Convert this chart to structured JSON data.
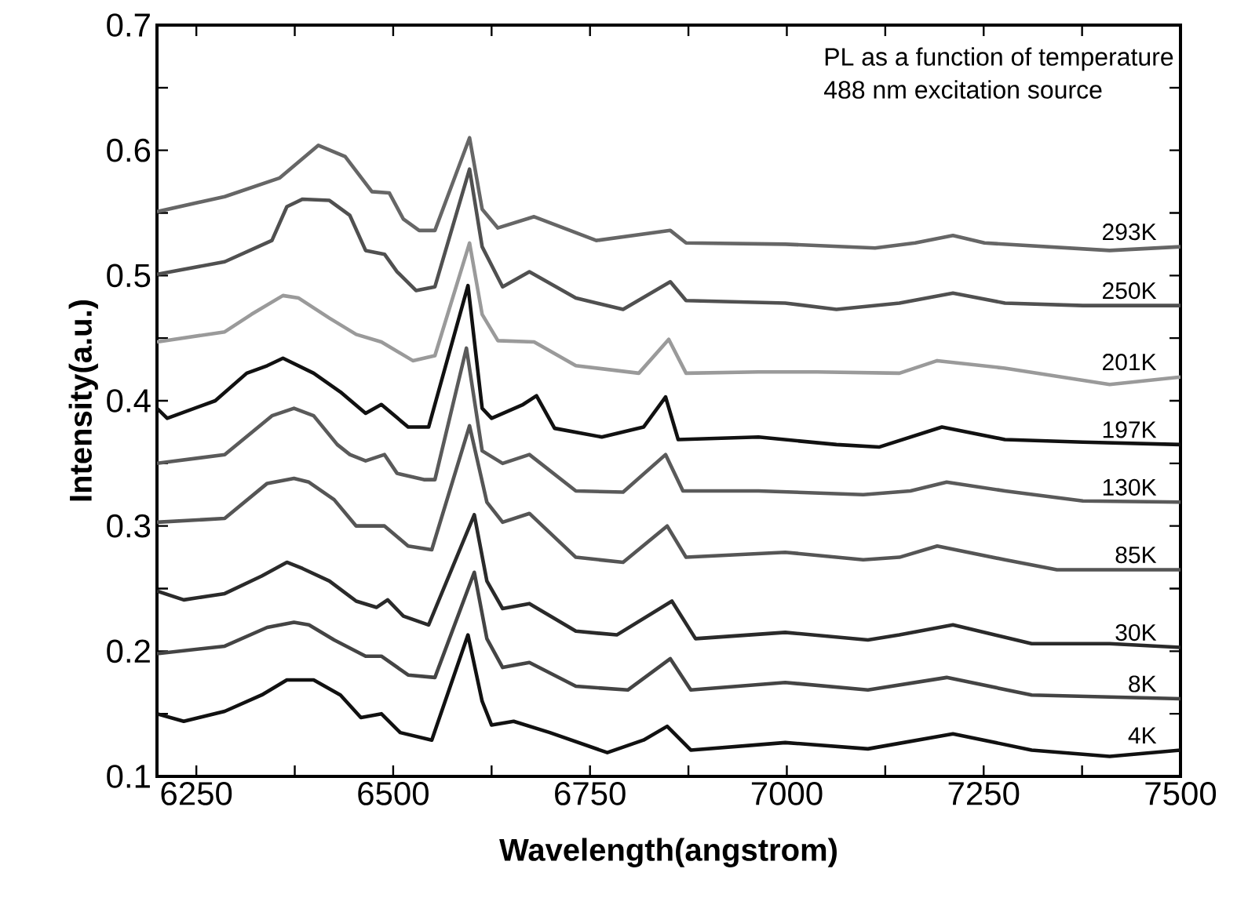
{
  "chart_data": {
    "type": "line",
    "xlabel": "Wavelength(angstrom)",
    "ylabel": "Intensity(a.u.)",
    "annotations": [
      "PL as a function of temperature",
      "488 nm excitation source"
    ],
    "xlim": [
      6200,
      7500
    ],
    "ylim": [
      0.1,
      0.7
    ],
    "xticks": [
      6250,
      {
        "value": 6375,
        "label": null
      },
      6500,
      {
        "value": 6625,
        "label": null
      },
      6750,
      {
        "value": 6875,
        "label": null
      },
      7000,
      {
        "value": 7125,
        "label": null
      },
      7250,
      {
        "value": 7375,
        "label": null
      },
      7500
    ],
    "yticks": [
      0.1,
      {
        "value": 0.15,
        "label": null
      },
      0.2,
      {
        "value": 0.25,
        "label": null
      },
      0.3,
      {
        "value": 0.35,
        "label": null
      },
      0.4,
      {
        "value": 0.45,
        "label": null
      },
      0.5,
      {
        "value": 0.55,
        "label": null
      },
      0.6,
      {
        "value": 0.65,
        "label": null
      },
      0.7
    ],
    "marker": "none",
    "line_style": "solid",
    "series": [
      {
        "name": "293K",
        "color": "#666666",
        "x": [
          6200,
          6286,
          6356,
          6405,
          6439,
          6473,
          6495,
          6513,
          6533,
          6553,
          6597,
          6613,
          6633,
          6679,
          6758,
          6852,
          6872,
          6998,
          7112,
          7163,
          7211,
          7251,
          7410,
          7500
        ],
        "values": [
          0.551,
          0.563,
          0.578,
          0.604,
          0.595,
          0.567,
          0.566,
          0.545,
          0.536,
          0.536,
          0.61,
          0.553,
          0.538,
          0.547,
          0.528,
          0.536,
          0.526,
          0.525,
          0.522,
          0.526,
          0.532,
          0.526,
          0.52,
          0.523
        ]
      },
      {
        "name": "250K",
        "color": "#505050",
        "x": [
          6200,
          6286,
          6346,
          6365,
          6385,
          6419,
          6445,
          6465,
          6489,
          6505,
          6529,
          6553,
          6597,
          6613,
          6639,
          6673,
          6732,
          6792,
          6852,
          6872,
          6998,
          7063,
          7143,
          7211,
          7277,
          7376,
          7500
        ],
        "values": [
          0.501,
          0.511,
          0.528,
          0.555,
          0.561,
          0.56,
          0.548,
          0.52,
          0.517,
          0.503,
          0.488,
          0.491,
          0.585,
          0.523,
          0.491,
          0.503,
          0.482,
          0.473,
          0.495,
          0.48,
          0.478,
          0.473,
          0.478,
          0.486,
          0.478,
          0.476,
          0.476
        ]
      },
      {
        "name": "201K",
        "color": "#9a9a9a",
        "x": [
          6200,
          6286,
          6320,
          6360,
          6380,
          6419,
          6453,
          6485,
          6525,
          6553,
          6597,
          6613,
          6633,
          6679,
          6732,
          6812,
          6850,
          6872,
          6964,
          7038,
          7143,
          7191,
          7277,
          7410,
          7500
        ],
        "values": [
          0.447,
          0.455,
          0.469,
          0.484,
          0.482,
          0.466,
          0.453,
          0.447,
          0.432,
          0.436,
          0.526,
          0.469,
          0.448,
          0.447,
          0.428,
          0.422,
          0.449,
          0.422,
          0.423,
          0.423,
          0.422,
          0.432,
          0.426,
          0.413,
          0.419
        ]
      },
      {
        "name": "197K",
        "color": "#111111",
        "x": [
          6200,
          6213,
          6274,
          6314,
          6340,
          6360,
          6399,
          6433,
          6465,
          6485,
          6519,
          6545,
          6595,
          6613,
          6625,
          6665,
          6682,
          6705,
          6765,
          6818,
          6846,
          6862,
          6964,
          7063,
          7117,
          7197,
          7277,
          7376,
          7500
        ],
        "values": [
          0.394,
          0.386,
          0.4,
          0.422,
          0.428,
          0.434,
          0.422,
          0.407,
          0.39,
          0.397,
          0.379,
          0.379,
          0.492,
          0.394,
          0.386,
          0.397,
          0.404,
          0.378,
          0.371,
          0.379,
          0.403,
          0.369,
          0.371,
          0.365,
          0.363,
          0.379,
          0.369,
          0.367,
          0.365
        ]
      },
      {
        "name": "130K",
        "color": "#5a5a5a",
        "x": [
          6200,
          6286,
          6346,
          6374,
          6399,
          6429,
          6445,
          6465,
          6489,
          6505,
          6539,
          6553,
          6593,
          6613,
          6639,
          6673,
          6732,
          6792,
          6846,
          6868,
          6964,
          7097,
          7157,
          7203,
          7277,
          7376,
          7500
        ],
        "values": [
          0.35,
          0.357,
          0.388,
          0.394,
          0.388,
          0.365,
          0.357,
          0.352,
          0.357,
          0.342,
          0.337,
          0.337,
          0.442,
          0.36,
          0.35,
          0.357,
          0.328,
          0.327,
          0.357,
          0.328,
          0.328,
          0.325,
          0.328,
          0.335,
          0.328,
          0.32,
          0.319
        ]
      },
      {
        "name": "85K",
        "color": "#555555",
        "x": [
          6200,
          6286,
          6340,
          6374,
          6393,
          6425,
          6453,
          6489,
          6519,
          6549,
          6597,
          6619,
          6639,
          6673,
          6732,
          6792,
          6848,
          6872,
          6998,
          7097,
          7143,
          7191,
          7277,
          7343,
          7500
        ],
        "values": [
          0.303,
          0.306,
          0.334,
          0.338,
          0.335,
          0.321,
          0.3,
          0.3,
          0.284,
          0.281,
          0.38,
          0.319,
          0.303,
          0.31,
          0.275,
          0.271,
          0.3,
          0.275,
          0.279,
          0.273,
          0.275,
          0.284,
          0.273,
          0.265,
          0.265
        ]
      },
      {
        "name": "30K",
        "color": "#2a2a2a",
        "x": [
          6200,
          6234,
          6286,
          6333,
          6365,
          6385,
          6419,
          6453,
          6479,
          6493,
          6513,
          6545,
          6603,
          6619,
          6639,
          6673,
          6732,
          6784,
          6854,
          6884,
          6998,
          7103,
          7143,
          7211,
          7311,
          7410,
          7500
        ],
        "values": [
          0.248,
          0.241,
          0.246,
          0.26,
          0.271,
          0.266,
          0.256,
          0.24,
          0.235,
          0.241,
          0.228,
          0.221,
          0.309,
          0.256,
          0.234,
          0.238,
          0.216,
          0.213,
          0.24,
          0.21,
          0.215,
          0.209,
          0.213,
          0.221,
          0.206,
          0.206,
          0.203
        ]
      },
      {
        "name": "8K",
        "color": "#444444",
        "x": [
          6200,
          6286,
          6340,
          6374,
          6393,
          6425,
          6465,
          6485,
          6519,
          6553,
          6603,
          6619,
          6639,
          6673,
          6732,
          6798,
          6852,
          6878,
          6998,
          7103,
          7203,
          7311,
          7500
        ],
        "values": [
          0.198,
          0.204,
          0.219,
          0.223,
          0.221,
          0.209,
          0.196,
          0.196,
          0.181,
          0.179,
          0.263,
          0.21,
          0.187,
          0.191,
          0.172,
          0.169,
          0.194,
          0.169,
          0.175,
          0.169,
          0.179,
          0.165,
          0.162
        ]
      },
      {
        "name": "4K",
        "color": "#111111",
        "x": [
          6200,
          6234,
          6286,
          6333,
          6365,
          6399,
          6433,
          6459,
          6485,
          6509,
          6549,
          6595,
          6613,
          6625,
          6653,
          6699,
          6772,
          6818,
          6848,
          6878,
          6998,
          7103,
          7211,
          7311,
          7410,
          7500
        ],
        "values": [
          0.15,
          0.144,
          0.152,
          0.165,
          0.177,
          0.177,
          0.165,
          0.147,
          0.15,
          0.135,
          0.129,
          0.213,
          0.16,
          0.141,
          0.144,
          0.135,
          0.119,
          0.129,
          0.14,
          0.121,
          0.127,
          0.122,
          0.134,
          0.121,
          0.116,
          0.121
        ]
      }
    ]
  }
}
